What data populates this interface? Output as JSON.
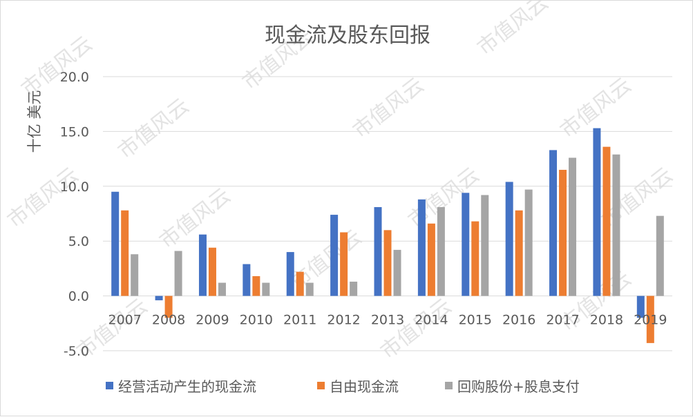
{
  "chart_data": {
    "type": "bar",
    "title": "现金流及股东回报",
    "ylabel": "十亿 美元",
    "xlabel": "",
    "ylim": [
      -5,
      20
    ],
    "yticks": [
      20,
      15,
      10,
      5,
      0,
      -5
    ],
    "ytick_labels": [
      "20.0",
      "15.0",
      "10.0",
      "5.0",
      "0.0",
      "-5.0"
    ],
    "grid": true,
    "legend_position": "bottom",
    "categories": [
      "2007",
      "2008",
      "2009",
      "2010",
      "2011",
      "2012",
      "2013",
      "2014",
      "2015",
      "2016",
      "2017",
      "2018",
      "2019"
    ],
    "series": [
      {
        "name": "经营活动产生的现金流",
        "color": "#4472c4",
        "values": [
          9.5,
          -0.4,
          5.6,
          2.9,
          4.0,
          7.4,
          8.1,
          8.8,
          9.4,
          10.4,
          13.3,
          15.3,
          -2.0
        ]
      },
      {
        "name": "自由现金流",
        "color": "#ed7d31",
        "values": [
          7.8,
          -2.0,
          4.4,
          1.8,
          2.2,
          5.8,
          6.0,
          6.6,
          6.8,
          7.8,
          11.5,
          13.6,
          -4.3
        ]
      },
      {
        "name": "回购股份+股息支付",
        "color": "#a5a5a5",
        "values": [
          3.8,
          4.1,
          1.2,
          1.2,
          1.2,
          1.3,
          4.2,
          8.1,
          9.2,
          9.7,
          12.6,
          12.9,
          7.3
        ]
      }
    ]
  },
  "watermark": {
    "text": "市值风云",
    "color": "#e3e3e3"
  }
}
